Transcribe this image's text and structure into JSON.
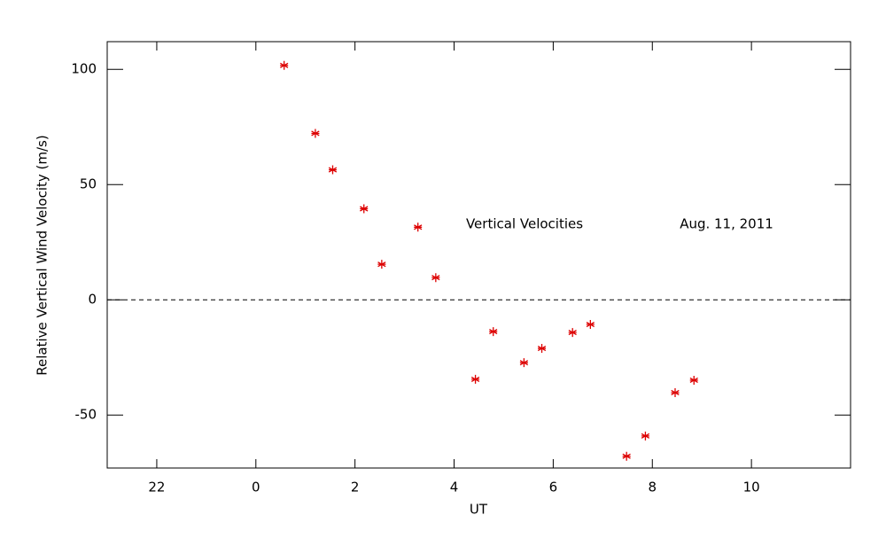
{
  "chart_data": {
    "type": "scatter",
    "xlabel": "UT",
    "ylabel": "Relative Vertical Wind Velocity (m/s)",
    "annotations": [
      "Vertical Velocities",
      "Aug. 11, 2011"
    ],
    "xlim": [
      -3,
      12
    ],
    "xticks": [
      {
        "value": -2,
        "label": "22"
      },
      0,
      2,
      4,
      6,
      8,
      10
    ],
    "ylim": [
      -73,
      112
    ],
    "yticks": [
      -50,
      0,
      50,
      100
    ],
    "hline": 0,
    "marker": "asterisk",
    "color": "#dd0000",
    "x": [
      0.57,
      1.2,
      1.55,
      2.18,
      2.54,
      3.27,
      3.63,
      4.43,
      4.79,
      5.41,
      5.77,
      6.39,
      6.75,
      7.48,
      7.86,
      8.46,
      8.84
    ],
    "values": [
      101.7,
      72.2,
      56.4,
      39.5,
      15.4,
      31.5,
      9.6,
      -34.5,
      -13.8,
      -27.3,
      -21.1,
      -14.2,
      -10.7,
      -67.9,
      -59.1,
      -40.3,
      -34.9
    ]
  }
}
